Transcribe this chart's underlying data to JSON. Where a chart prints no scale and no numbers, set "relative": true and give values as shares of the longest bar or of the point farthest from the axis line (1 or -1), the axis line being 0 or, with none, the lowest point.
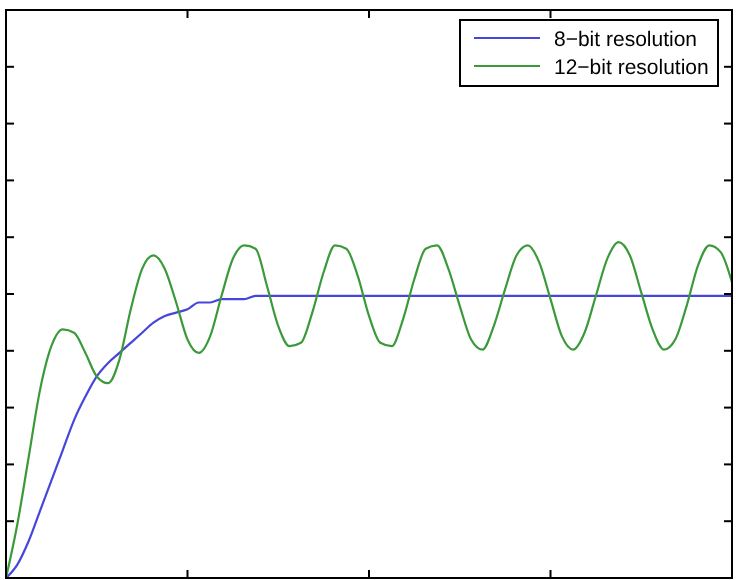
{
  "chart_data": {
    "type": "line",
    "relative": true,
    "legend": "top right",
    "categories": [
      null,
      null,
      null,
      null,
      null,
      null,
      null,
      null,
      null,
      null,
      null,
      null,
      null,
      null,
      null,
      null,
      null,
      null,
      null,
      null,
      null,
      null,
      null,
      null,
      null,
      null,
      null,
      null,
      null,
      null,
      null,
      null,
      null,
      null,
      null,
      null,
      null,
      null,
      null,
      null,
      null,
      null,
      null,
      null,
      null,
      null,
      null,
      null,
      null,
      null,
      null,
      null,
      null,
      null,
      null,
      null,
      null,
      null,
      null,
      null,
      null,
      null,
      null,
      null,
      null
    ],
    "series": [
      {
        "name": "8−bit resolution",
        "color": "#4646dc",
        "values": [
          0,
          0.04,
          0.11,
          0.2,
          0.29,
          0.38,
          0.47,
          0.54,
          0.6,
          0.64,
          0.67,
          0.7,
          0.73,
          0.76,
          0.78,
          0.79,
          0.8,
          0.82,
          0.82,
          0.83,
          0.83,
          0.83,
          0.84,
          0.84,
          0.84,
          0.84,
          0.84,
          0.84,
          0.84,
          0.84,
          0.84,
          0.84,
          0.84,
          0.84,
          0.84,
          0.84,
          0.84,
          0.84,
          0.84,
          0.84,
          0.84,
          0.84,
          0.84,
          0.84,
          0.84,
          0.84,
          0.84,
          0.84,
          0.84,
          0.84,
          0.84,
          0.84,
          0.84,
          0.84,
          0.84,
          0.84,
          0.84,
          0.84,
          0.84,
          0.84,
          0.84,
          0.84,
          0.84,
          0.84,
          0.84
        ]
      },
      {
        "name": "12−bit resolution",
        "color": "#3a9a3a",
        "values": [
          0,
          0.16,
          0.36,
          0.56,
          0.69,
          0.74,
          0.73,
          0.67,
          0.6,
          0.58,
          0.65,
          0.8,
          0.92,
          0.96,
          0.92,
          0.82,
          0.71,
          0.67,
          0.72,
          0.84,
          0.95,
          0.99,
          0.98,
          0.87,
          0.75,
          0.69,
          0.7,
          0.79,
          0.91,
          0.99,
          0.98,
          0.9,
          0.78,
          0.7,
          0.69,
          0.77,
          0.89,
          0.98,
          0.99,
          0.92,
          0.81,
          0.71,
          0.68,
          0.75,
          0.86,
          0.96,
          0.99,
          0.94,
          0.83,
          0.72,
          0.68,
          0.73,
          0.84,
          0.95,
          1,
          0.96,
          0.85,
          0.74,
          0.68,
          0.71,
          0.81,
          0.93,
          0.99,
          0.97,
          0.88
        ]
      }
    ]
  }
}
